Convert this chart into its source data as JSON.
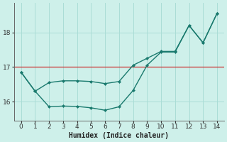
{
  "line1_x": [
    0,
    1,
    2,
    3,
    4,
    5,
    6,
    7,
    8,
    9,
    10,
    11,
    12,
    13,
    14
  ],
  "line1_y": [
    16.85,
    16.3,
    16.55,
    16.6,
    16.6,
    16.58,
    16.52,
    16.58,
    17.05,
    17.25,
    17.45,
    17.45,
    18.2,
    17.7,
    18.55
  ],
  "line2_x": [
    0,
    1,
    2,
    3,
    4,
    5,
    6,
    7,
    8,
    9,
    10,
    11,
    12,
    13,
    14
  ],
  "line2_y": [
    16.85,
    16.3,
    15.85,
    15.87,
    15.86,
    15.82,
    15.75,
    15.85,
    16.32,
    17.05,
    17.43,
    17.43,
    18.2,
    17.7,
    18.55
  ],
  "line_color": "#1a7a6e",
  "bg_color": "#cef0ea",
  "grid_color": "#aaddd6",
  "hline_color": "#cc3333",
  "hline_y": 17.0,
  "xlim": [
    -0.5,
    14.5
  ],
  "ylim": [
    15.45,
    18.85
  ],
  "yticks": [
    16,
    17,
    18
  ],
  "xticks": [
    0,
    1,
    2,
    3,
    4,
    5,
    6,
    7,
    8,
    9,
    10,
    11,
    12,
    13,
    14
  ],
  "xlabel": "Humidex (Indice chaleur)",
  "xlabel_fontsize": 7,
  "tick_fontsize": 6.5,
  "marker": "D",
  "markersize": 2.5,
  "linewidth": 1.0
}
